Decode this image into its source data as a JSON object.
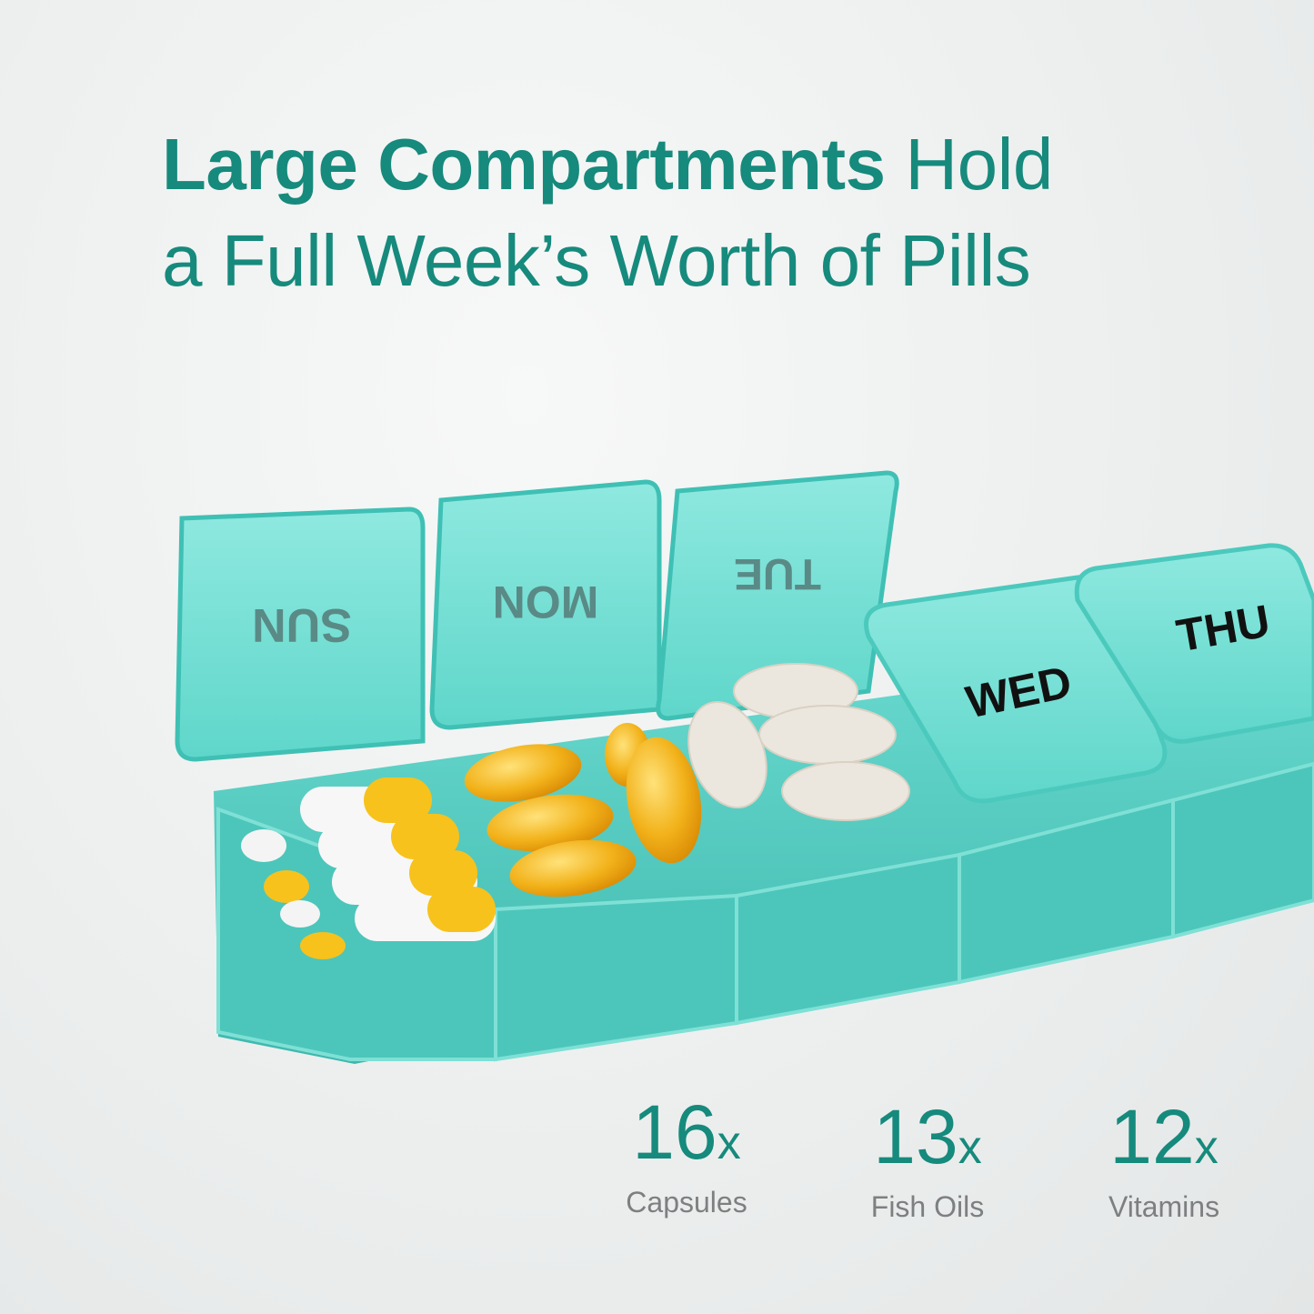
{
  "headline": {
    "bold": "Large Compartments",
    "rest_line1": " Hold",
    "line2": "a Full Week’s Worth of Pills"
  },
  "product": {
    "compartments": [
      "SUN",
      "MON",
      "TUE",
      "WED",
      "THU"
    ],
    "color": "#3fd0c4"
  },
  "stats": [
    {
      "count": "16",
      "suffix": "x",
      "label": "Capsules"
    },
    {
      "count": "13",
      "suffix": "x",
      "label": "Fish Oils"
    },
    {
      "count": "12",
      "suffix": "x",
      "label": "Vitamins"
    }
  ],
  "colors": {
    "accent": "#168a7c",
    "label": "#7d7f80",
    "background": "#eceeee"
  }
}
